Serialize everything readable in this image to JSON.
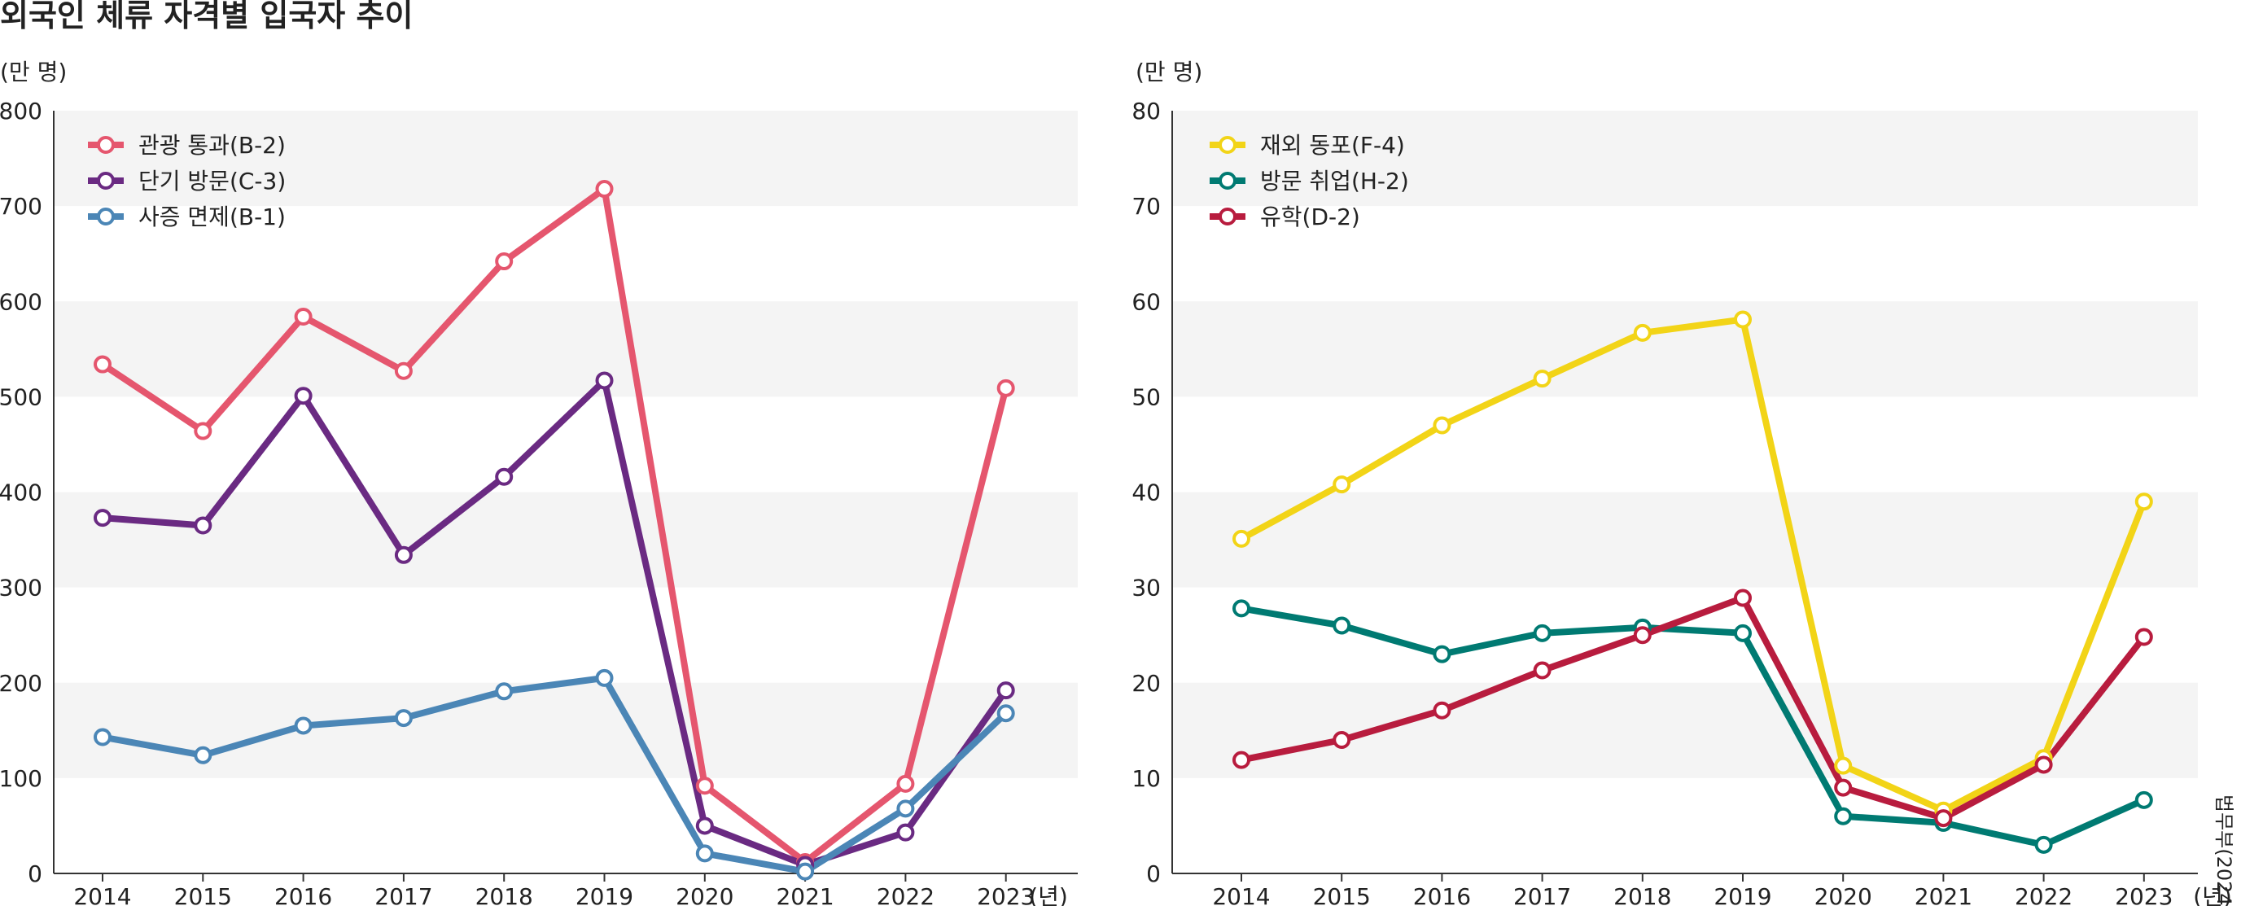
{
  "title": "외국인 체류 자격별 입국자 추이",
  "source": "법무부(2024)",
  "chart_data": [
    {
      "type": "line",
      "unit_label": "(만 명)",
      "x_unit_label": "(년)",
      "categories": [
        "2014",
        "2015",
        "2016",
        "2017",
        "2018",
        "2019",
        "2020",
        "2021",
        "2022",
        "2023"
      ],
      "ylim": [
        0,
        800
      ],
      "yticks": [
        "0",
        "100",
        "200",
        "300",
        "400",
        "500",
        "600",
        "700",
        "800"
      ],
      "grid": "alternating horizontal bands",
      "legend_position": "top-left",
      "series": [
        {
          "name": "관광 통과(B-2)",
          "color": "#e5566e",
          "values": [
            534,
            464,
            584,
            527,
            642,
            718,
            92,
            12,
            94,
            509
          ]
        },
        {
          "name": "단기 방문(C-3)",
          "color": "#6a2a82",
          "values": [
            373,
            365,
            501,
            334,
            416,
            517,
            50,
            9,
            43,
            192
          ]
        },
        {
          "name": "사증 면제(B-1)",
          "color": "#4b86b6",
          "values": [
            143,
            124,
            155,
            163,
            191,
            205,
            21,
            2,
            68,
            168
          ]
        }
      ]
    },
    {
      "type": "line",
      "unit_label": "(만 명)",
      "x_unit_label": "(년)",
      "categories": [
        "2014",
        "2015",
        "2016",
        "2017",
        "2018",
        "2019",
        "2020",
        "2021",
        "2022",
        "2023"
      ],
      "ylim": [
        0,
        80
      ],
      "yticks": [
        "0",
        "10",
        "20",
        "30",
        "40",
        "50",
        "60",
        "70",
        "80"
      ],
      "grid": "alternating horizontal bands",
      "legend_position": "top-left",
      "series": [
        {
          "name": "재외 동포(F-4)",
          "color": "#f2d417",
          "values": [
            35.1,
            40.8,
            47.0,
            51.9,
            56.7,
            58.1,
            11.3,
            6.6,
            12.1,
            39.0
          ]
        },
        {
          "name": "방문 취업(H-2)",
          "color": "#007a72",
          "values": [
            27.8,
            26.0,
            23.0,
            25.2,
            25.8,
            25.2,
            6.0,
            5.3,
            3.0,
            7.7
          ]
        },
        {
          "name": "유학(D-2)",
          "color": "#b81c3e",
          "values": [
            11.9,
            14.0,
            17.1,
            21.3,
            25.0,
            28.9,
            9.0,
            5.8,
            11.4,
            24.8
          ]
        }
      ]
    }
  ]
}
